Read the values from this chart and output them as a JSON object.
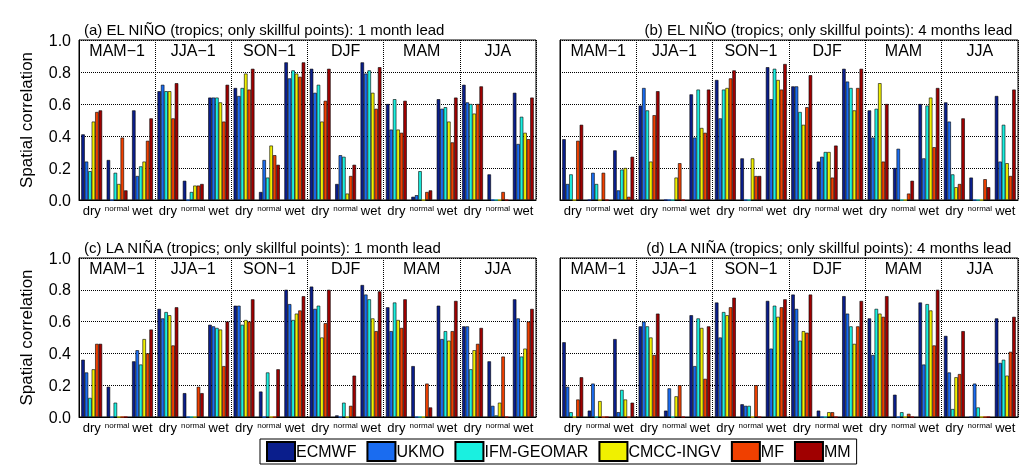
{
  "chart_data": [
    {
      "type": "bar",
      "title": "(a) EL NIÑO (tropics; only skillful points): 1 month lead",
      "ylabel": "Spatial correlation",
      "categories": [
        "dry",
        "normal",
        "wet",
        "dry",
        "normal",
        "wet",
        "dry",
        "normal",
        "wet",
        "dry",
        "normal",
        "wet",
        "dry",
        "normal",
        "wet",
        "dry",
        "normal",
        "wet"
      ],
      "annotations": [
        "MAM−1",
        "JJA−1",
        "SON−1",
        "DJF",
        "MAM",
        "JJA"
      ],
      "ylim": [
        0,
        1
      ],
      "yticks": [
        {
          "value": 0,
          "label": "0.0"
        },
        {
          "value": 0.2,
          "label": "0.2"
        },
        {
          "value": 0.4,
          "label": "0.4"
        },
        {
          "value": 0.6,
          "label": "0.6"
        },
        {
          "value": 0.8,
          "label": "0.8"
        },
        {
          "value": 1,
          "label": "1.0"
        }
      ],
      "grid": true,
      "legend": "bottom",
      "series": [
        {
          "name": "ECMWF",
          "color": "#0a1e8c",
          "values": [
            0.41,
            0.25,
            0.56,
            0.68,
            0.12,
            0.64,
            0.7,
            0.05,
            0.86,
            0.82,
            0.1,
            0.86,
            0.6,
            0.02,
            0.63,
            0.72,
            0.16,
            0.67
          ]
        },
        {
          "name": "UKMO",
          "color": "#1a6cf0",
          "values": [
            0.24,
            0,
            0.15,
            0.72,
            0,
            0.64,
            0.65,
            0.25,
            0.76,
            0.67,
            0.28,
            0.79,
            0.44,
            0.03,
            0.57,
            0.61,
            0,
            0.35
          ]
        },
        {
          "name": "IFM-GEOMAR",
          "color": "#1af0e0",
          "values": [
            0.18,
            0.17,
            0.21,
            0.68,
            0.05,
            0.64,
            0.7,
            0.14,
            0.81,
            0.72,
            0.27,
            0.81,
            0.63,
            0.18,
            0.58,
            0.6,
            0,
            0.52
          ]
        },
        {
          "name": "CMCC-INGV",
          "color": "#f0f000",
          "values": [
            0.49,
            0.1,
            0.24,
            0.68,
            0.09,
            0.61,
            0.79,
            0.34,
            0.79,
            0.49,
            0.04,
            0.67,
            0.44,
            0,
            0.49,
            0.54,
            0,
            0.42
          ]
        },
        {
          "name": "MF",
          "color": "#f04000",
          "values": [
            0.55,
            0.39,
            0.37,
            0.51,
            0.09,
            0.49,
            0.69,
            0.28,
            0.77,
            0.62,
            0.15,
            0.57,
            0.42,
            0.05,
            0.36,
            0.6,
            0.05,
            0.38
          ]
        },
        {
          "name": "MM",
          "color": "#a00000",
          "values": [
            0.56,
            0.06,
            0.51,
            0.73,
            0.1,
            0.72,
            0.82,
            0.22,
            0.86,
            0.82,
            0.22,
            0.83,
            0.62,
            0.06,
            0.64,
            0.71,
            0,
            0.64
          ]
        }
      ]
    },
    {
      "type": "bar",
      "title": "(b) EL NIÑO (tropics; only skillful points): 4 months lead",
      "categories": [
        "dry",
        "normal",
        "wet",
        "dry",
        "normal",
        "wet",
        "dry",
        "normal",
        "wet",
        "dry",
        "normal",
        "wet",
        "dry",
        "normal",
        "wet",
        "dry",
        "normal",
        "wet"
      ],
      "annotations": [
        "MAM−1",
        "JJA−1",
        "SON−1",
        "DJF",
        "MAM",
        "JJA"
      ],
      "ylim": [
        0,
        1
      ],
      "yticks": [
        0,
        0.2,
        0.4,
        0.6,
        0.8,
        1
      ],
      "tick_labels": "x",
      "grid": true,
      "legend": "bottom",
      "series": [
        {
          "name": "ECMWF",
          "color": "#0a1e8c",
          "values": [
            0.38,
            0,
            0.31,
            0.59,
            0,
            0.66,
            0.75,
            0.26,
            0.83,
            0.71,
            0.24,
            0.82,
            0.56,
            0.2,
            0.6,
            0.61,
            0.14,
            0.65
          ]
        },
        {
          "name": "UKMO",
          "color": "#1a6cf0",
          "values": [
            0.1,
            0.17,
            0.06,
            0.7,
            0,
            0.39,
            0.51,
            0,
            0.63,
            0.71,
            0.27,
            0.74,
            0.39,
            0.32,
            0.26,
            0.49,
            0,
            0.24
          ]
        },
        {
          "name": "IFM-GEOMAR",
          "color": "#1af0e0",
          "values": [
            0.16,
            0.1,
            0.19,
            0.56,
            0,
            0.69,
            0.69,
            0,
            0.82,
            0.55,
            0.3,
            0.7,
            0.57,
            0,
            0.59,
            0.16,
            0,
            0.47
          ]
        },
        {
          "name": "CMCC-INGV",
          "color": "#f0f000",
          "values": [
            0,
            0,
            0.2,
            0.24,
            0.14,
            0.45,
            0.7,
            0.26,
            0.75,
            0.47,
            0.3,
            0.56,
            0.73,
            0,
            0.64,
            0.08,
            0,
            0.23
          ]
        },
        {
          "name": "MF",
          "color": "#f04000",
          "values": [
            0.37,
            0.17,
            0.02,
            0.53,
            0.23,
            0.42,
            0.76,
            0.15,
            0.69,
            0.58,
            0.14,
            0.7,
            0.24,
            0.04,
            0.33,
            0.1,
            0.13,
            0.15
          ]
        },
        {
          "name": "MM",
          "color": "#a00000",
          "values": [
            0.47,
            0,
            0.27,
            0.68,
            0,
            0.69,
            0.81,
            0.15,
            0.85,
            0.78,
            0.34,
            0.82,
            0.6,
            0.12,
            0.7,
            0.51,
            0.08,
            0.69
          ]
        }
      ]
    },
    {
      "type": "bar",
      "title": "(c) LA NIÑA (tropics; only skillful points): 1 month lead",
      "ylabel": "Spatial correlation",
      "categories": [
        "dry",
        "normal",
        "wet",
        "dry",
        "normal",
        "wet",
        "dry",
        "normal",
        "wet",
        "dry",
        "normal",
        "wet",
        "dry",
        "normal",
        "wet",
        "dry",
        "normal",
        "wet"
      ],
      "annotations": [
        "MAM−1",
        "JJA−1",
        "SON−1",
        "DJF",
        "MAM",
        "JJA"
      ],
      "ylim": [
        0,
        1
      ],
      "yticks": [
        {
          "value": 0,
          "label": "0.0"
        },
        {
          "value": 0.2,
          "label": "0.2"
        },
        {
          "value": 0.4,
          "label": "0.4"
        },
        {
          "value": 0.6,
          "label": "0.6"
        },
        {
          "value": 0.8,
          "label": "0.8"
        },
        {
          "value": 1,
          "label": "1.0"
        }
      ],
      "grid": true,
      "legend": "bottom",
      "series": [
        {
          "name": "ECMWF",
          "color": "#0a1e8c",
          "values": [
            0.36,
            0.19,
            0.35,
            0.68,
            0.15,
            0.58,
            0.7,
            0.16,
            0.8,
            0.82,
            0.01,
            0.83,
            0.69,
            0.32,
            0.7,
            0.57,
            0.35,
            0.74
          ]
        },
        {
          "name": "UKMO",
          "color": "#1a6cf0",
          "values": [
            0.28,
            0,
            0.42,
            0.62,
            0,
            0.57,
            0.7,
            0,
            0.71,
            0.68,
            0,
            0.77,
            0.54,
            0,
            0.49,
            0.57,
            0.07,
            0.62
          ]
        },
        {
          "name": "IFM-GEOMAR",
          "color": "#1af0e0",
          "values": [
            0.12,
            0.09,
            0.33,
            0.66,
            0,
            0.56,
            0.58,
            0.28,
            0.61,
            0.7,
            0.09,
            0.74,
            0.72,
            0,
            0.54,
            0.3,
            0.01,
            0.38
          ]
        },
        {
          "name": "CMCC-INGV",
          "color": "#f0f000",
          "values": [
            0.3,
            0,
            0.49,
            0.64,
            0,
            0.55,
            0.61,
            0,
            0.65,
            0.5,
            0,
            0.62,
            0.61,
            0,
            0.48,
            0.42,
            0.09,
            0.43
          ]
        },
        {
          "name": "MF",
          "color": "#f04000",
          "values": [
            0.46,
            0,
            0.4,
            0.45,
            0.19,
            0.32,
            0.6,
            0,
            0.67,
            0.59,
            0.07,
            0.54,
            0.56,
            0.21,
            0.54,
            0.46,
            0.38,
            0.6
          ]
        },
        {
          "name": "MM",
          "color": "#a00000",
          "values": [
            0.46,
            0,
            0.55,
            0.69,
            0.15,
            0.6,
            0.74,
            0.3,
            0.76,
            0.8,
            0.26,
            0.79,
            0.74,
            0.06,
            0.73,
            0.56,
            0,
            0.68
          ]
        }
      ]
    },
    {
      "type": "bar",
      "title": "(d) LA NIÑA (tropics; only skillful points): 4 months lead",
      "categories": [
        "dry",
        "normal",
        "wet",
        "dry",
        "normal",
        "wet",
        "dry",
        "normal",
        "wet",
        "dry",
        "normal",
        "wet",
        "dry",
        "normal",
        "wet",
        "dry",
        "normal",
        "wet"
      ],
      "annotations": [
        "MAM−1",
        "JJA−1",
        "SON−1",
        "DJF",
        "MAM",
        "JJA"
      ],
      "ylim": [
        0,
        1
      ],
      "yticks": [
        0,
        0.2,
        0.4,
        0.6,
        0.8,
        1
      ],
      "tick_labels": "x",
      "grid": true,
      "legend": "bottom",
      "series": [
        {
          "name": "ECMWF",
          "color": "#0a1e8c",
          "values": [
            0.47,
            0.04,
            0.49,
            0.57,
            0.04,
            0.64,
            0.72,
            0.08,
            0.73,
            0.77,
            0.04,
            0.76,
            0.62,
            0.14,
            0.72,
            0.51,
            0,
            0.62
          ]
        },
        {
          "name": "UKMO",
          "color": "#1a6cf0",
          "values": [
            0.19,
            0.21,
            0.03,
            0.6,
            0.18,
            0.32,
            0.5,
            0.07,
            0.43,
            0.68,
            0,
            0.65,
            0.39,
            0,
            0.33,
            0.28,
            0.21,
            0.34
          ]
        },
        {
          "name": "IFM-GEOMAR",
          "color": "#1af0e0",
          "values": [
            0.03,
            0,
            0.17,
            0.57,
            0,
            0.62,
            0.66,
            0.07,
            0.7,
            0.48,
            0,
            0.57,
            0.68,
            0.03,
            0.71,
            0.05,
            0.06,
            0.36
          ]
        },
        {
          "name": "CMCC-INGV",
          "color": "#f0f000",
          "values": [
            0,
            0.1,
            0.11,
            0.5,
            0.13,
            0.56,
            0.64,
            0,
            0.63,
            0.54,
            0.03,
            0.46,
            0.65,
            0,
            0.67,
            0.25,
            0,
            0.26
          ]
        },
        {
          "name": "MF",
          "color": "#f04000",
          "values": [
            0.11,
            0,
            0,
            0.39,
            0.2,
            0.24,
            0.69,
            0.2,
            0.69,
            0.53,
            0.03,
            0.57,
            0.63,
            0.02,
            0.45,
            0.27,
            0,
            0.41
          ]
        },
        {
          "name": "MM",
          "color": "#a00000",
          "values": [
            0.25,
            0,
            0.09,
            0.65,
            0,
            0.57,
            0.75,
            0,
            0.74,
            0.77,
            0,
            0.73,
            0.76,
            0,
            0.8,
            0.54,
            0,
            0.63
          ]
        }
      ]
    }
  ]
}
